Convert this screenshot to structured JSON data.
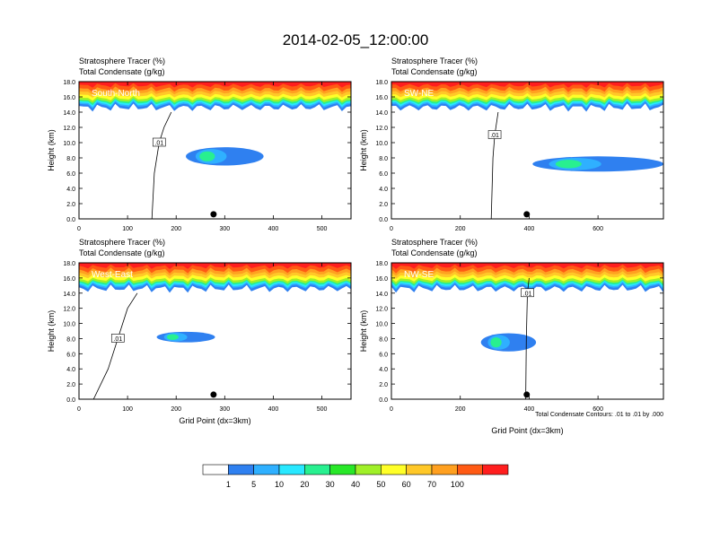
{
  "title": "2014-02-05_12:00:00",
  "colors": {
    "levels": [
      "#ffffff",
      "#2f80f0",
      "#2fb0ff",
      "#28e8ff",
      "#28f090",
      "#28e828",
      "#a0f028",
      "#ffff28",
      "#ffc828",
      "#ffa020",
      "#ff5a14",
      "#ff1e1e"
    ],
    "contour": "#000000",
    "marker": "#000000"
  },
  "label_bar": {
    "labels": [
      "1",
      "5",
      "10",
      "20",
      "30",
      "40",
      "50",
      "60",
      "70",
      "100"
    ]
  },
  "contour_note": "Total Condensate Contours: .01 to .01 by .000",
  "chart_data": [
    {
      "type": "heatmap",
      "panel_name": "South-North",
      "subtitle_left": "Stratosphere Tracer",
      "subtitle_left_unit": "(%)",
      "subtitle_left2": "Total Condensate",
      "subtitle_left2_unit": "(g/kg)",
      "ylabel": "Height (km)",
      "xlabel": "",
      "xlim": [
        0,
        560
      ],
      "ylim": [
        0,
        18
      ],
      "xticks": [
        "0",
        "100",
        "200",
        "300",
        "400",
        "500"
      ],
      "yticks": [
        "0.0",
        "2.0",
        "4.0",
        "6.0",
        "8.0",
        "10.0",
        "12.0",
        "14.0",
        "16.0",
        "18.0"
      ],
      "contour_label": ".01",
      "marker": {
        "x": 277,
        "y": 0.6
      }
    },
    {
      "type": "heatmap",
      "panel_name": "SW-NE",
      "subtitle_left": "Stratosphere Tracer",
      "subtitle_left_unit": "(%)",
      "subtitle_left2": "Total Condensate",
      "subtitle_left2_unit": "(g/kg)",
      "ylabel": "Height (km)",
      "xlabel": "",
      "xlim": [
        0,
        790
      ],
      "ylim": [
        0,
        18
      ],
      "xticks": [
        "0",
        "200",
        "400",
        "600"
      ],
      "yticks": [
        "0.0",
        "2.0",
        "4.0",
        "6.0",
        "8.0",
        "10.0",
        "12.0",
        "14.0",
        "16.0",
        "18.0"
      ],
      "contour_label": ".01",
      "marker": {
        "x": 393,
        "y": 0.6
      }
    },
    {
      "type": "heatmap",
      "panel_name": "West-East",
      "subtitle_left": "Stratosphere Tracer",
      "subtitle_left_unit": "(%)",
      "subtitle_left2": "Total Condensate",
      "subtitle_left2_unit": "(g/kg)",
      "ylabel": "Height (km)",
      "xlabel": "Grid Point (dx=3km)",
      "xlim": [
        0,
        560
      ],
      "ylim": [
        0,
        18
      ],
      "xticks": [
        "0",
        "100",
        "200",
        "300",
        "400",
        "500"
      ],
      "yticks": [
        "0.0",
        "2.0",
        "4.0",
        "6.0",
        "8.0",
        "10.0",
        "12.0",
        "14.0",
        "16.0",
        "18.0"
      ],
      "contour_label": ".01",
      "marker": {
        "x": 277,
        "y": 0.6
      }
    },
    {
      "type": "heatmap",
      "panel_name": "NW-SE",
      "subtitle_left": "Stratosphere Tracer",
      "subtitle_left_unit": "(%)",
      "subtitle_left2": "Total Condensate",
      "subtitle_left2_unit": "(g/kg)",
      "ylabel": "Height (km)",
      "xlabel": "Grid Point (dx=3km)",
      "xlim": [
        0,
        790
      ],
      "ylim": [
        0,
        18
      ],
      "xticks": [
        "0",
        "200",
        "400",
        "600"
      ],
      "yticks": [
        "0.0",
        "2.0",
        "4.0",
        "6.0",
        "8.0",
        "10.0",
        "12.0",
        "14.0",
        "16.0",
        "18.0"
      ],
      "contour_label": ".01",
      "marker": {
        "x": 393,
        "y": 0.6
      }
    }
  ]
}
